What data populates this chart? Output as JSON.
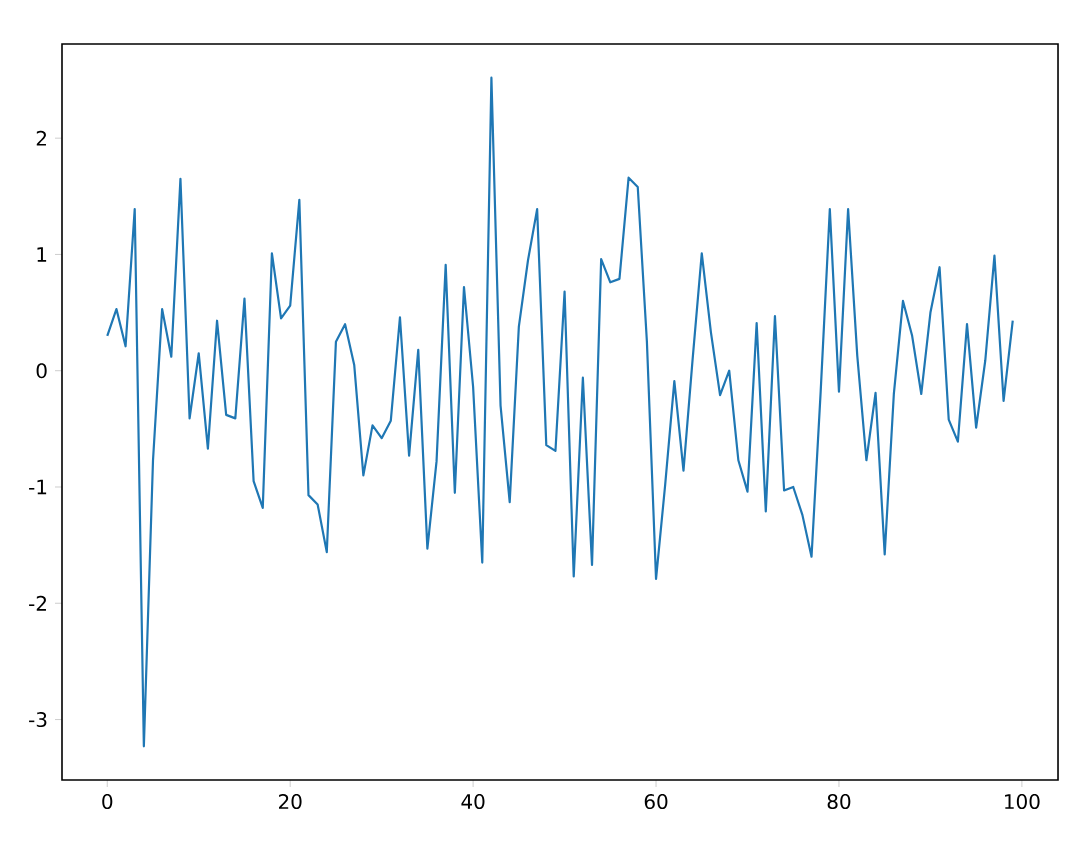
{
  "chart_data": {
    "type": "line",
    "x": [
      0,
      1,
      2,
      3,
      4,
      5,
      6,
      7,
      8,
      9,
      10,
      11,
      12,
      13,
      14,
      15,
      16,
      17,
      18,
      19,
      20,
      21,
      22,
      23,
      24,
      25,
      26,
      27,
      28,
      29,
      30,
      31,
      32,
      33,
      34,
      35,
      36,
      37,
      38,
      39,
      40,
      41,
      42,
      43,
      44,
      45,
      46,
      47,
      48,
      49,
      50,
      51,
      52,
      53,
      54,
      55,
      56,
      57,
      58,
      59,
      60,
      61,
      62,
      63,
      64,
      65,
      66,
      67,
      68,
      69,
      70,
      71,
      72,
      73,
      74,
      75,
      76,
      77,
      78,
      79,
      80,
      81,
      82,
      83,
      84,
      85,
      86,
      87,
      88,
      89,
      90,
      91,
      92,
      93,
      94,
      95,
      96,
      97,
      98,
      99
    ],
    "series": [
      {
        "color": "#1f77b4",
        "values": [
          0.3,
          0.53,
          0.21,
          1.39,
          -3.23,
          -0.77,
          0.53,
          0.12,
          1.65,
          -0.41,
          0.15,
          -0.67,
          0.43,
          -0.38,
          -0.41,
          0.62,
          -0.95,
          -1.18,
          1.01,
          0.45,
          0.56,
          1.47,
          -1.07,
          -1.15,
          -1.56,
          0.25,
          0.4,
          0.05,
          -0.9,
          -0.47,
          -0.58,
          -0.43,
          0.46,
          -0.73,
          0.18,
          -1.53,
          -0.78,
          0.91,
          -1.05,
          0.72,
          -0.14,
          -1.65,
          2.52,
          -0.3,
          -1.13,
          0.38,
          0.95,
          1.39,
          -0.64,
          -0.69,
          0.68,
          -1.77,
          -0.06,
          -1.67,
          0.96,
          0.76,
          0.79,
          1.66,
          1.58,
          0.25,
          -1.79,
          -0.98,
          -0.09,
          -0.86,
          0.1,
          1.01,
          0.33,
          -0.21,
          0.0,
          -0.77,
          -1.04,
          0.41,
          -1.21,
          0.47,
          -1.03,
          -1.0,
          -1.24,
          -1.6,
          -0.18,
          1.39,
          -0.18,
          1.39,
          0.13,
          -0.77,
          -0.19,
          -1.58,
          -0.2,
          0.6,
          0.3,
          -0.2,
          0.5,
          0.89,
          -0.42,
          -0.61,
          0.4,
          -0.49,
          0.09,
          0.99,
          -0.26,
          0.43
        ]
      }
    ],
    "xlim": [
      -4.95,
      103.95
    ],
    "ylim": [
      -3.52,
      2.81
    ],
    "xticks": [
      0,
      20,
      40,
      60,
      80,
      100
    ],
    "yticks": [
      -3,
      -2,
      -1,
      0,
      1,
      2
    ]
  }
}
